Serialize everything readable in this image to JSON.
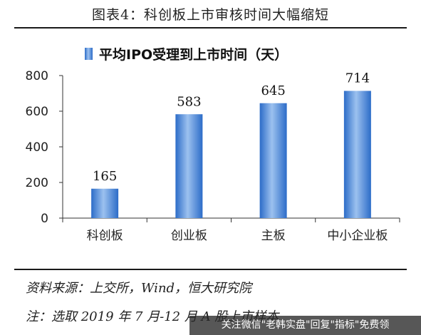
{
  "figure_title": "图表4：科创板上市审核时间大幅缩短",
  "source_text": "资料来源：上交所，Wind，恒大研究院",
  "note_text": "注：选取 2019 年 7 月-12 月 A 股上市样本",
  "watermark_text": "关注微信\"老韩实盘\"回复\"指标\"免费领",
  "chart_data": {
    "type": "bar",
    "title": "平均IPO受理到上市时间（天）",
    "categories": [
      "科创板",
      "创业板",
      "主板",
      "中小企业板"
    ],
    "series": [
      {
        "name": "平均IPO受理到上市时间（天）",
        "values": [
          165,
          583,
          645,
          714
        ]
      }
    ],
    "data_labels": [
      "165",
      "583",
      "645",
      "714"
    ],
    "ylim": [
      0,
      800
    ],
    "yticks": [
      0,
      200,
      400,
      600,
      800
    ],
    "grid": false,
    "legend": "top-center",
    "xlabel": "",
    "ylabel": "",
    "colors": {
      "bar_light": "#9cc1ef",
      "bar_mid": "#5b93e0",
      "bar_dark": "#2c6cc8",
      "legend_marker": "#3b7dd8"
    }
  }
}
